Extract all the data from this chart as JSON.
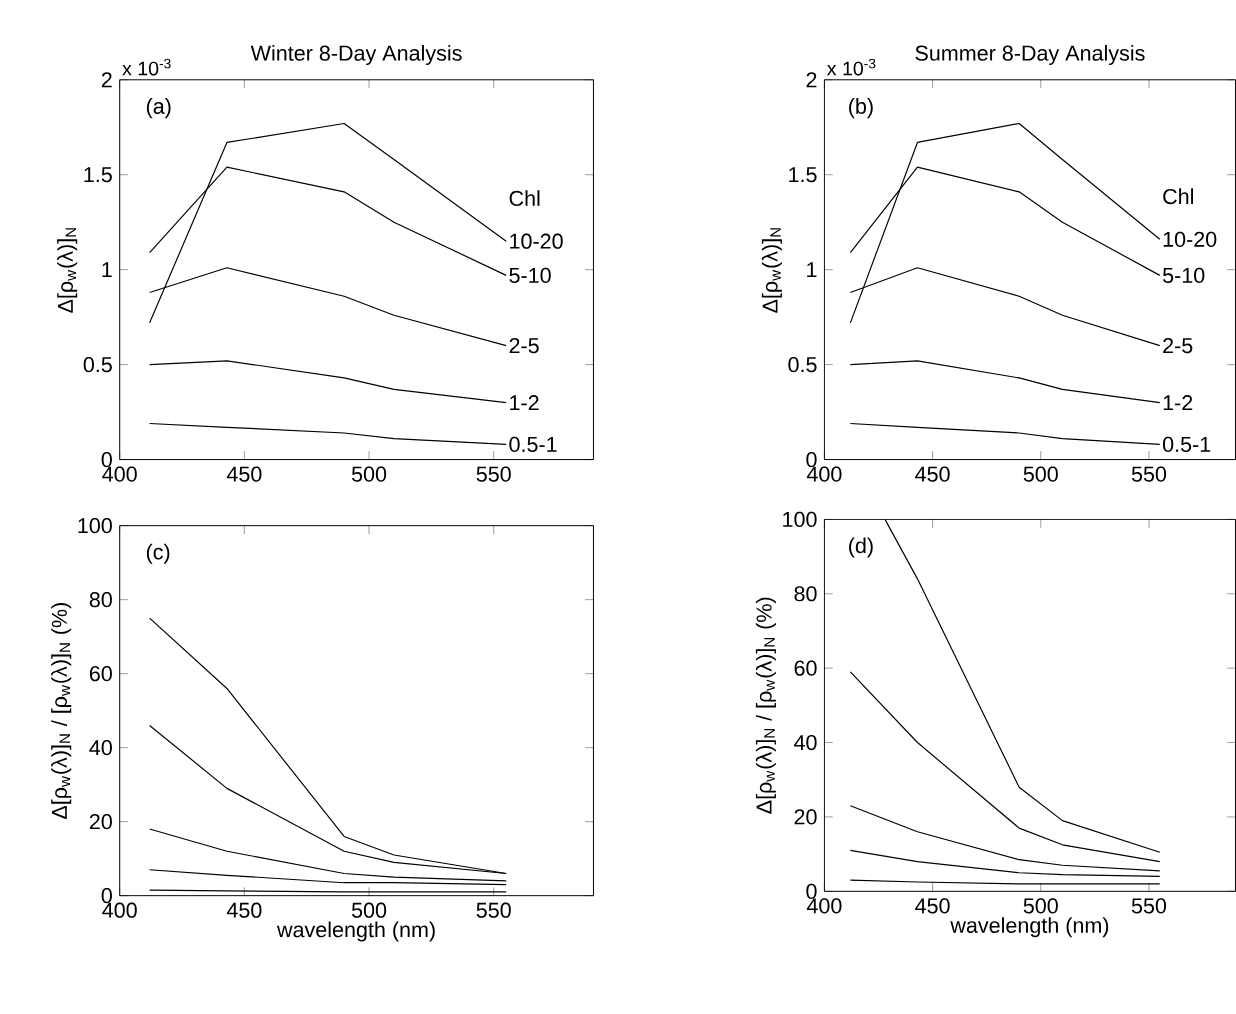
{
  "chart_data": [
    {
      "type": "line",
      "title": "Winter 8-Day Analysis",
      "ylabel": "Δ[ρ$_{w}$(λ)]$_{N}$",
      "legend_title": "Chl",
      "annotations": [
        "(a)",
        "x 10$^{-3}$"
      ],
      "x": [
        412,
        443,
        490,
        510,
        555
      ],
      "xlim": [
        400,
        590
      ],
      "xticks": [
        400,
        450,
        500,
        550
      ],
      "ylim": [
        0,
        2
      ],
      "yticks": [
        0,
        0.5,
        1,
        1.5,
        2
      ],
      "series": [
        {
          "name": "10-20",
          "color": "#000000",
          "values": [
            0.72,
            1.67,
            1.77,
            1.58,
            1.15
          ]
        },
        {
          "name": "5-10",
          "color": "#000000",
          "values": [
            1.09,
            1.54,
            1.41,
            1.25,
            0.97
          ]
        },
        {
          "name": "2-5",
          "color": "#000000",
          "values": [
            0.88,
            1.01,
            0.86,
            0.76,
            0.6
          ]
        },
        {
          "name": "1-2",
          "color": "#000000",
          "values": [
            0.5,
            0.52,
            0.43,
            0.37,
            0.3
          ]
        },
        {
          "name": "0.5-1",
          "color": "#000000",
          "values": [
            0.19,
            0.17,
            0.14,
            0.11,
            0.08
          ]
        }
      ]
    },
    {
      "type": "line",
      "title": "Summer 8-Day Analysis",
      "ylabel": "Δ[ρ$_{w}$(λ)]$_{N}$",
      "legend_title": "Chl",
      "annotations": [
        "(b)",
        "x 10$^{-3}$"
      ],
      "x": [
        412,
        443,
        490,
        510,
        555
      ],
      "xlim": [
        400,
        590
      ],
      "xticks": [
        400,
        450,
        500,
        550
      ],
      "ylim": [
        0,
        2
      ],
      "yticks": [
        0,
        0.5,
        1,
        1.5,
        2
      ],
      "series": [
        {
          "name": "10-20",
          "color": "#000000",
          "values": [
            0.72,
            1.67,
            1.77,
            1.58,
            1.16
          ]
        },
        {
          "name": "5-10",
          "color": "#000000",
          "values": [
            1.09,
            1.54,
            1.41,
            1.25,
            0.97
          ]
        },
        {
          "name": "2-5",
          "color": "#000000",
          "values": [
            0.88,
            1.01,
            0.86,
            0.76,
            0.6
          ]
        },
        {
          "name": "1-2",
          "color": "#000000",
          "values": [
            0.5,
            0.52,
            0.43,
            0.37,
            0.3
          ]
        },
        {
          "name": "0.5-1",
          "color": "#000000",
          "values": [
            0.19,
            0.17,
            0.14,
            0.11,
            0.08
          ]
        }
      ]
    },
    {
      "type": "line",
      "xlabel": "wavelength (nm)",
      "ylabel": "Δ[ρ$_{w}$(λ)]$_{N}$ / [ρ$_{w}$(λ)]$_{N}$ (%)",
      "annotations": [
        "(c)"
      ],
      "x": [
        412,
        443,
        490,
        510,
        555
      ],
      "xlim": [
        400,
        590
      ],
      "xticks": [
        400,
        450,
        500,
        550
      ],
      "ylim": [
        0,
        100
      ],
      "yticks": [
        0,
        20,
        40,
        60,
        80,
        100
      ],
      "series": [
        {
          "color": "#000000",
          "values": [
            75,
            56,
            16,
            11,
            6
          ]
        },
        {
          "color": "#000000",
          "values": [
            46,
            29,
            12,
            9,
            6
          ]
        },
        {
          "color": "#000000",
          "values": [
            18,
            12,
            6,
            5,
            4
          ]
        },
        {
          "color": "#000000",
          "values": [
            7,
            5.5,
            3.5,
            3.5,
            3
          ]
        },
        {
          "color": "#000000",
          "values": [
            1.5,
            1.3,
            1,
            1,
            1
          ]
        }
      ]
    },
    {
      "type": "line",
      "xlabel": "wavelength (nm)",
      "ylabel": "Δ[ρ$_{w}$(λ)]$_{N}$ / [ρ$_{w}$(λ)]$_{N}$ (%)",
      "annotations": [
        "(d)"
      ],
      "x": [
        412,
        443,
        490,
        510,
        555
      ],
      "xlim": [
        400,
        590
      ],
      "xticks": [
        400,
        450,
        500,
        550
      ],
      "ylim": [
        0,
        100
      ],
      "yticks": [
        0,
        20,
        40,
        60,
        80,
        100
      ],
      "series": [
        {
          "color": "#000000",
          "x": [
            428,
            443,
            490,
            510,
            555
          ],
          "values": [
            100,
            84,
            28,
            19,
            10.5
          ]
        },
        {
          "color": "#000000",
          "values": [
            59,
            40,
            17,
            12.5,
            8
          ]
        },
        {
          "color": "#000000",
          "values": [
            23,
            16,
            8.5,
            7,
            5.5
          ]
        },
        {
          "color": "#000000",
          "values": [
            11,
            8,
            5,
            4.5,
            4
          ]
        },
        {
          "color": "#000000",
          "values": [
            3,
            2.5,
            2,
            2,
            2
          ]
        }
      ]
    }
  ]
}
